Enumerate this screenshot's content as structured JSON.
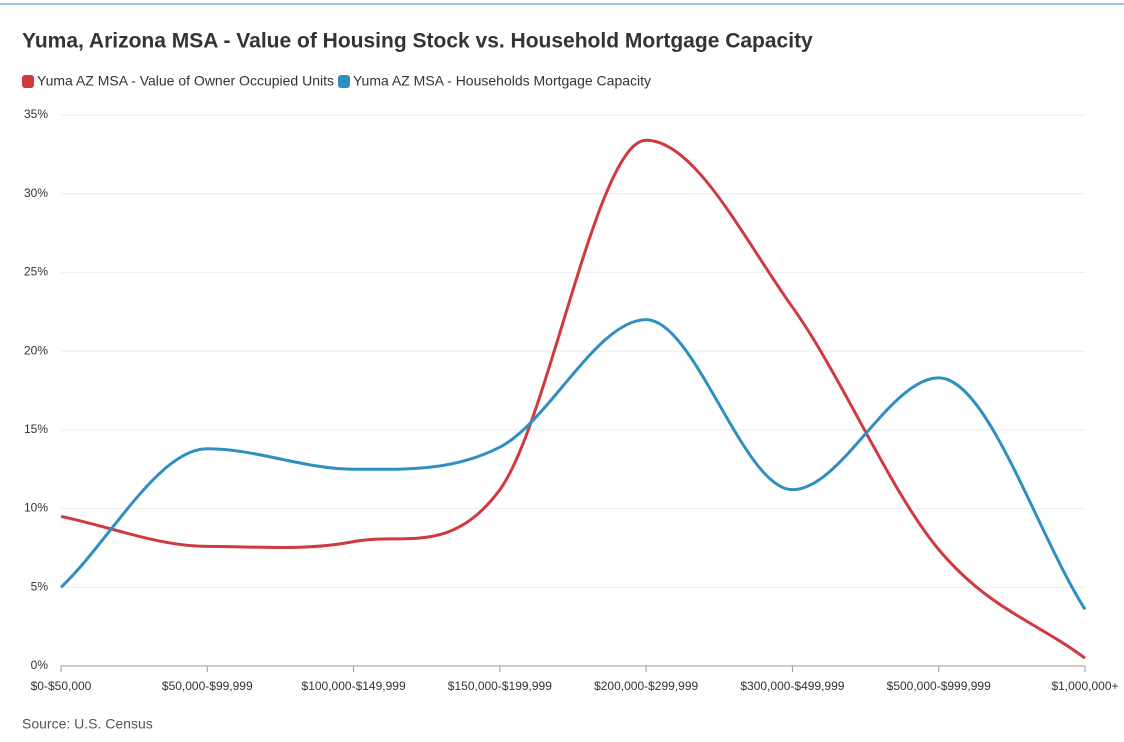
{
  "chart_data": {
    "type": "line",
    "title": "Yuma, Arizona MSA - Value of Housing Stock vs. Household Mortgage Capacity",
    "source": "Source: U.S. Census",
    "categories": [
      "$0-$50,000",
      "$50,000-$99,999",
      "$100,000-$149,999",
      "$150,000-$199,999",
      "$200,000-$299,999",
      "$300,000-$499,999",
      "$500,000-$999,999",
      "$1,000,000+"
    ],
    "series": [
      {
        "name": "Yuma AZ MSA - Value of Owner Occupied Units",
        "color": "#d03a3f",
        "values": [
          9.5,
          7.6,
          7.9,
          11.2,
          33.4,
          22.8,
          7.4,
          0.5
        ]
      },
      {
        "name": "Yuma AZ MSA - Households Mortgage Capacity",
        "color": "#2e8fc0",
        "values": [
          5.0,
          13.8,
          12.5,
          13.9,
          22.0,
          11.2,
          18.3,
          3.6
        ]
      }
    ],
    "ylim": [
      0,
      35
    ],
    "yticks": [
      {
        "value": 0,
        "label": "0%"
      },
      {
        "value": 5,
        "label": "5%"
      },
      {
        "value": 10,
        "label": "10%"
      },
      {
        "value": 15,
        "label": "15%"
      },
      {
        "value": 20,
        "label": "20%"
      },
      {
        "value": 25,
        "label": "25%"
      },
      {
        "value": 30,
        "label": "30%"
      },
      {
        "value": 35,
        "label": "35%"
      }
    ],
    "grid": true,
    "legend": "top-left"
  }
}
